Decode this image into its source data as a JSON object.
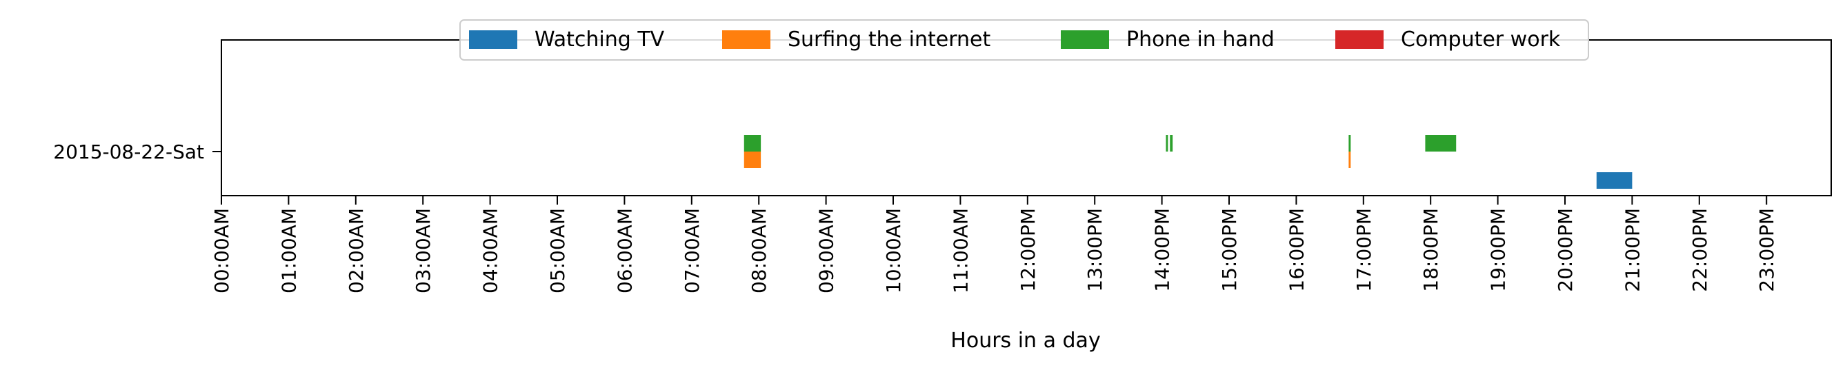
{
  "chart_data": {
    "type": "timeline",
    "title": "",
    "xlabel": "Hours in a day",
    "ylabel": "",
    "xlim": [
      0,
      23.9
    ],
    "x_ticks": [
      {
        "value": 0,
        "label": "00:00AM"
      },
      {
        "value": 1,
        "label": "01:00AM"
      },
      {
        "value": 2,
        "label": "02:00AM"
      },
      {
        "value": 3,
        "label": "03:00AM"
      },
      {
        "value": 4,
        "label": "04:00AM"
      },
      {
        "value": 5,
        "label": "05:00AM"
      },
      {
        "value": 6,
        "label": "06:00AM"
      },
      {
        "value": 7,
        "label": "07:00AM"
      },
      {
        "value": 8,
        "label": "08:00AM"
      },
      {
        "value": 9,
        "label": "09:00AM"
      },
      {
        "value": 10,
        "label": "10:00AM"
      },
      {
        "value": 11,
        "label": "11:00AM"
      },
      {
        "value": 12,
        "label": "12:00PM"
      },
      {
        "value": 13,
        "label": "13:00PM"
      },
      {
        "value": 14,
        "label": "14:00PM"
      },
      {
        "value": 15,
        "label": "15:00PM"
      },
      {
        "value": 16,
        "label": "16:00PM"
      },
      {
        "value": 17,
        "label": "17:00PM"
      },
      {
        "value": 18,
        "label": "18:00PM"
      },
      {
        "value": 19,
        "label": "19:00PM"
      },
      {
        "value": 20,
        "label": "20:00PM"
      },
      {
        "value": 21,
        "label": "21:00PM"
      },
      {
        "value": 22,
        "label": "22:00PM"
      },
      {
        "value": 23,
        "label": "23:00PM"
      }
    ],
    "categories": [
      "2015-08-22-Sat"
    ],
    "legend_position": "top-center",
    "series": [
      {
        "name": "Watching TV",
        "color": "#1f77b4",
        "lane": -1,
        "intervals": [
          {
            "day": "2015-08-22-Sat",
            "start": 20.47,
            "end": 21.0
          }
        ]
      },
      {
        "name": "Surfing the internet",
        "color": "#ff7f0e",
        "lane": 0,
        "intervals": [
          {
            "day": "2015-08-22-Sat",
            "start": 7.78,
            "end": 8.03
          },
          {
            "day": "2015-08-22-Sat",
            "start": 16.78,
            "end": 16.81
          }
        ]
      },
      {
        "name": "Phone in hand",
        "color": "#2ca02c",
        "lane": 1,
        "intervals": [
          {
            "day": "2015-08-22-Sat",
            "start": 7.78,
            "end": 8.03
          },
          {
            "day": "2015-08-22-Sat",
            "start": 14.06,
            "end": 14.09
          },
          {
            "day": "2015-08-22-Sat",
            "start": 14.12,
            "end": 14.16
          },
          {
            "day": "2015-08-22-Sat",
            "start": 16.78,
            "end": 16.81
          },
          {
            "day": "2015-08-22-Sat",
            "start": 17.92,
            "end": 18.38
          }
        ]
      },
      {
        "name": "Computer work",
        "color": "#d62728",
        "lane": 2,
        "intervals": []
      }
    ]
  }
}
